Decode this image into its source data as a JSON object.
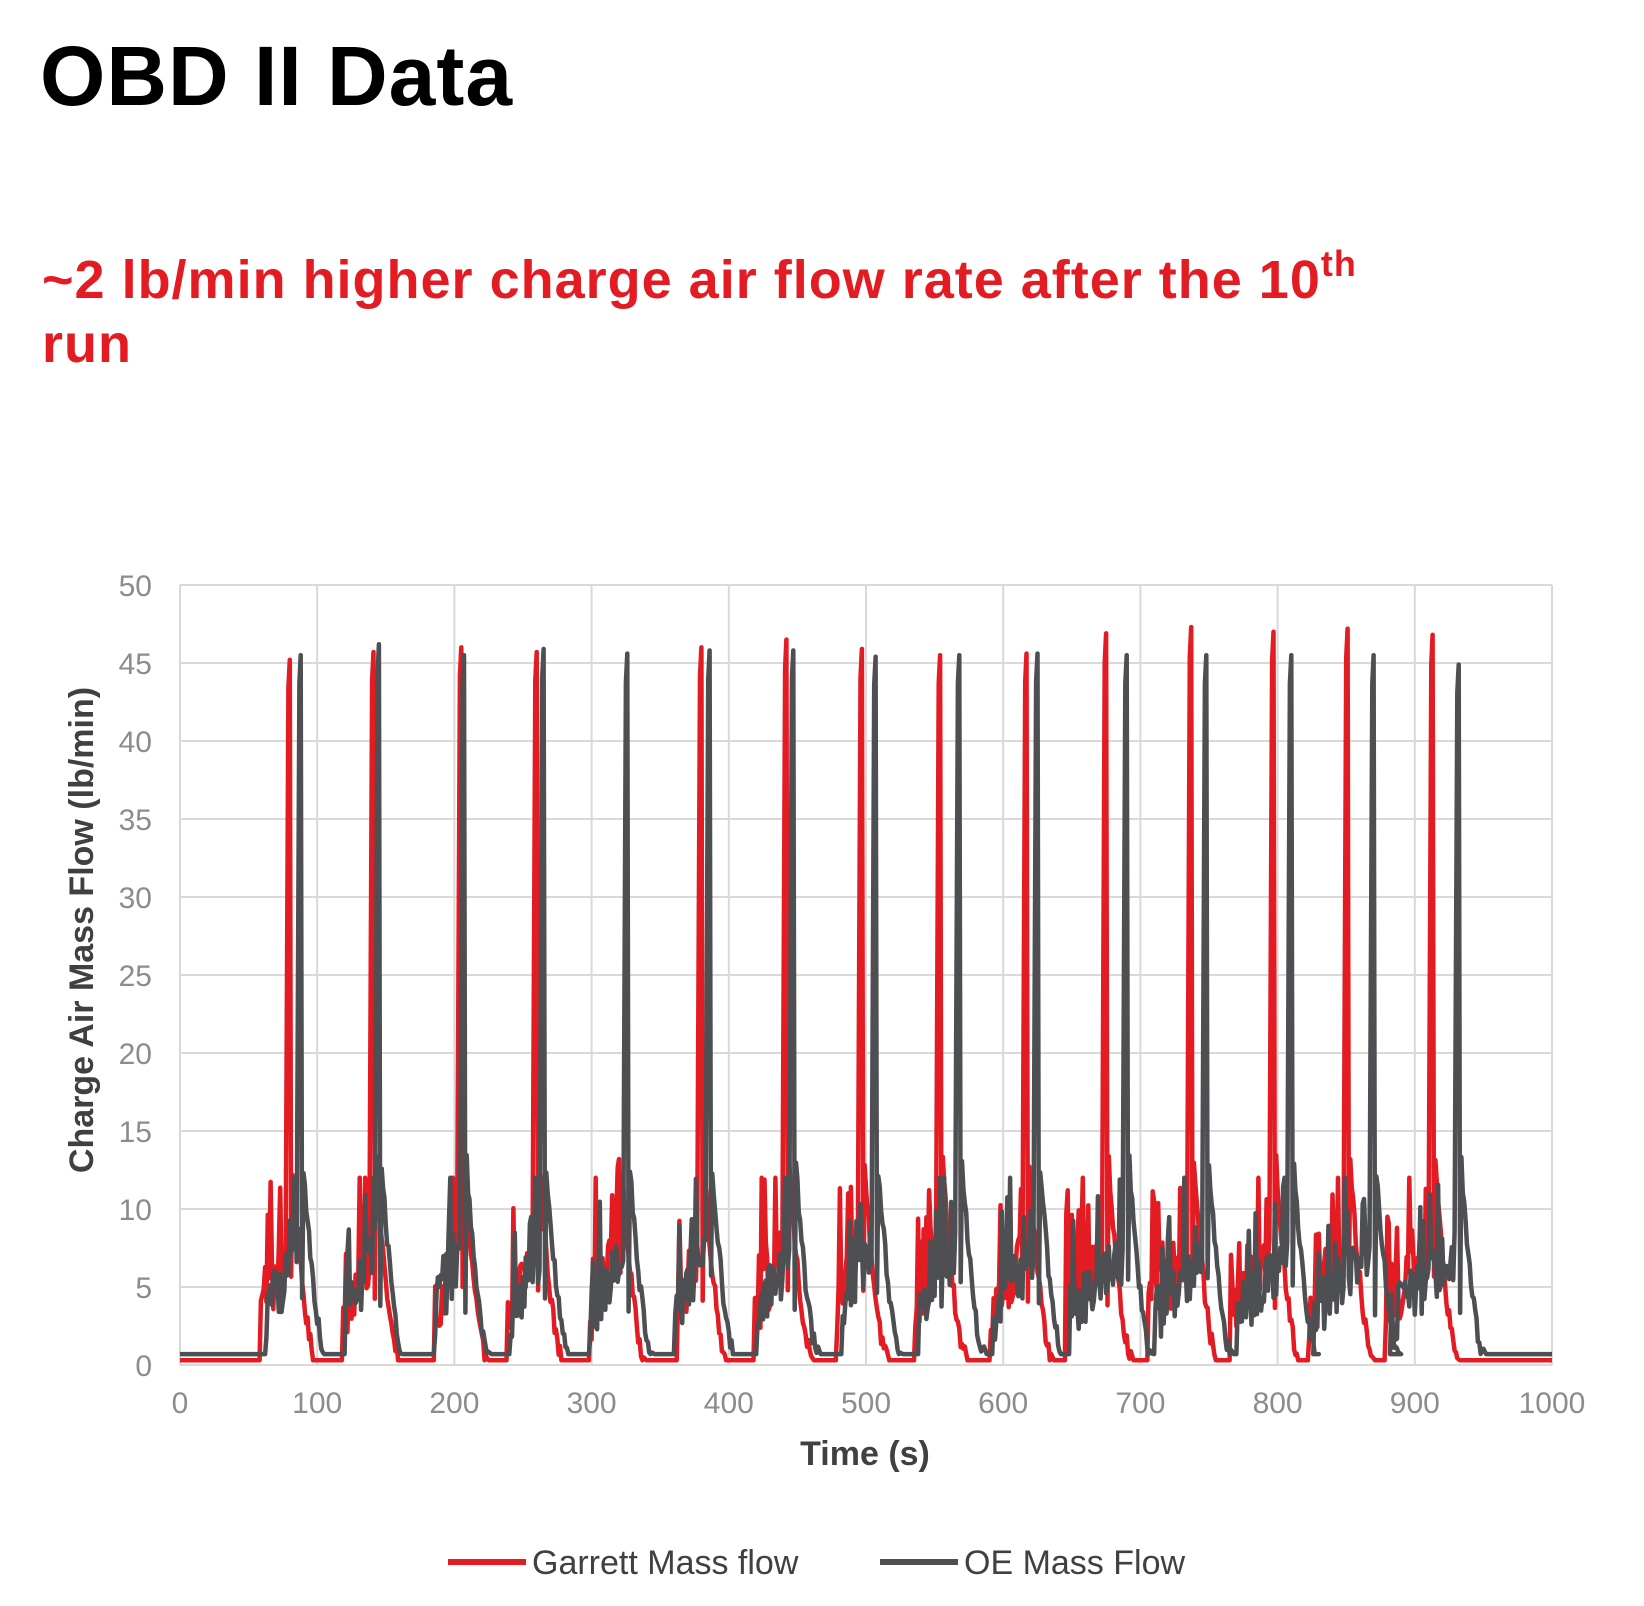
{
  "header": {
    "title": "OBD II Data",
    "subtitle_main": "~2 lb/min higher charge air flow rate after the 10",
    "subtitle_sup": "th",
    "subtitle_end": "run"
  },
  "colors": {
    "garrett": "#e31b23",
    "oe": "#4d4f52",
    "grid": "#d9d9d9",
    "title": "#e31b23"
  },
  "chart_data": {
    "type": "line",
    "title": "~2 lb/min higher charge air flow rate after the 10th run",
    "xlabel": "Time (s)",
    "ylabel": "Charge Air Mass Flow (lb/min)",
    "xlim": [
      0,
      1000
    ],
    "ylim": [
      0,
      50
    ],
    "x_ticks": [
      "0",
      "100",
      "200",
      "300",
      "400",
      "500",
      "600",
      "700",
      "800",
      "900",
      "1000"
    ],
    "y_ticks": [
      "0",
      "5",
      "10",
      "15",
      "20",
      "25",
      "30",
      "35",
      "40",
      "45",
      "50"
    ],
    "grid": true,
    "legend_position": "bottom",
    "baseline": {
      "garrett": 0.3,
      "oe": 0.7
    },
    "series": [
      {
        "name": "Garrett Mass flow",
        "color": "#e31b23",
        "run_starts": [
          58,
          118,
          185,
          238,
          298,
          362,
          418,
          478,
          535,
          590,
          645,
          705,
          765,
          822,
          878
        ],
        "peak_times": [
          80,
          141,
          205,
          260,
          320,
          380,
          442,
          497,
          554,
          617,
          675,
          737,
          797,
          851,
          913
        ],
        "peak_values": [
          45.2,
          45.7,
          46.0,
          45.7,
          13.2,
          46.0,
          46.5,
          45.9,
          45.5,
          45.6,
          46.9,
          47.3,
          47.0,
          47.2,
          46.8
        ]
      },
      {
        "name": "OE Mass Flow",
        "color": "#4d4f52",
        "run_starts": [
          62,
          120,
          185,
          240,
          298,
          360,
          420,
          482,
          538,
          592,
          648,
          710,
          770,
          826,
          882
        ],
        "peak_times": [
          88,
          145,
          207,
          265,
          326,
          386,
          447,
          507,
          568,
          625,
          690,
          748,
          810,
          870,
          932
        ],
        "peak_values": [
          45.5,
          46.2,
          45.5,
          45.9,
          45.6,
          45.8,
          45.8,
          45.4,
          45.5,
          45.6,
          45.5,
          45.5,
          45.5,
          45.5,
          44.9
        ]
      }
    ]
  }
}
